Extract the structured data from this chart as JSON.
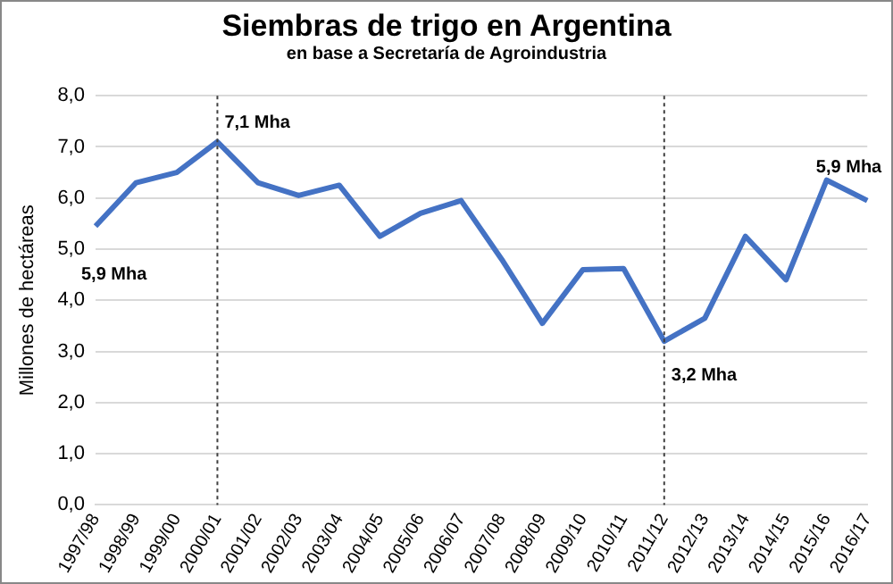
{
  "chart_data": {
    "type": "line",
    "title": "Siembras de trigo en Argentina",
    "subtitle": "en base a Secretaría de Agroindustria",
    "ylabel": "Millones de hectáreas",
    "categories": [
      "1997/98",
      "1998/99",
      "1999/00",
      "2000/01",
      "2001/02",
      "2002/03",
      "2003/04",
      "2004/05",
      "2005/06",
      "2006/07",
      "2007/08",
      "2008/09",
      "2009/10",
      "2010/11",
      "2011/12",
      "2012/13",
      "2013/14",
      "2014/15",
      "2015/16",
      "2016/17"
    ],
    "series": [
      {
        "color": "#4472c4",
        "values": [
          5.45,
          6.3,
          6.5,
          7.1,
          6.3,
          6.05,
          6.25,
          5.25,
          5.7,
          5.95,
          4.8,
          3.55,
          4.6,
          4.62,
          3.2,
          3.65,
          5.25,
          4.4,
          6.35,
          5.95
        ]
      }
    ],
    "ylim": [
      0,
      8
    ],
    "yticks": [
      {
        "value": 0,
        "label": "0,0"
      },
      {
        "value": 1,
        "label": "1,0"
      },
      {
        "value": 2,
        "label": "2,0"
      },
      {
        "value": 3,
        "label": "3,0"
      },
      {
        "value": 4,
        "label": "4,0"
      },
      {
        "value": 5,
        "label": "5,0"
      },
      {
        "value": 6,
        "label": "6,0"
      },
      {
        "value": 7,
        "label": "7,0"
      },
      {
        "value": 8,
        "label": "8,0"
      }
    ],
    "grid": "y",
    "legend": false,
    "marker": "none",
    "line_style": "solid",
    "ref_lines": [
      {
        "axis": "x",
        "value": "2000/01",
        "color": "#404040",
        "line_style": "dotted"
      },
      {
        "axis": "x",
        "value": "2011/12",
        "color": "#404040",
        "line_style": "dotted"
      }
    ],
    "annotations": [
      {
        "text": "5,9 Mha",
        "x": "1997/98",
        "y": 5.45
      },
      {
        "text": "7,1 Mha",
        "x": "2000/01",
        "y": 7.1
      },
      {
        "text": "3,2 Mha",
        "x": "2011/12",
        "y": 3.2
      },
      {
        "text": "5,9 Mha",
        "x": "2016/17",
        "y": 5.95
      }
    ]
  }
}
